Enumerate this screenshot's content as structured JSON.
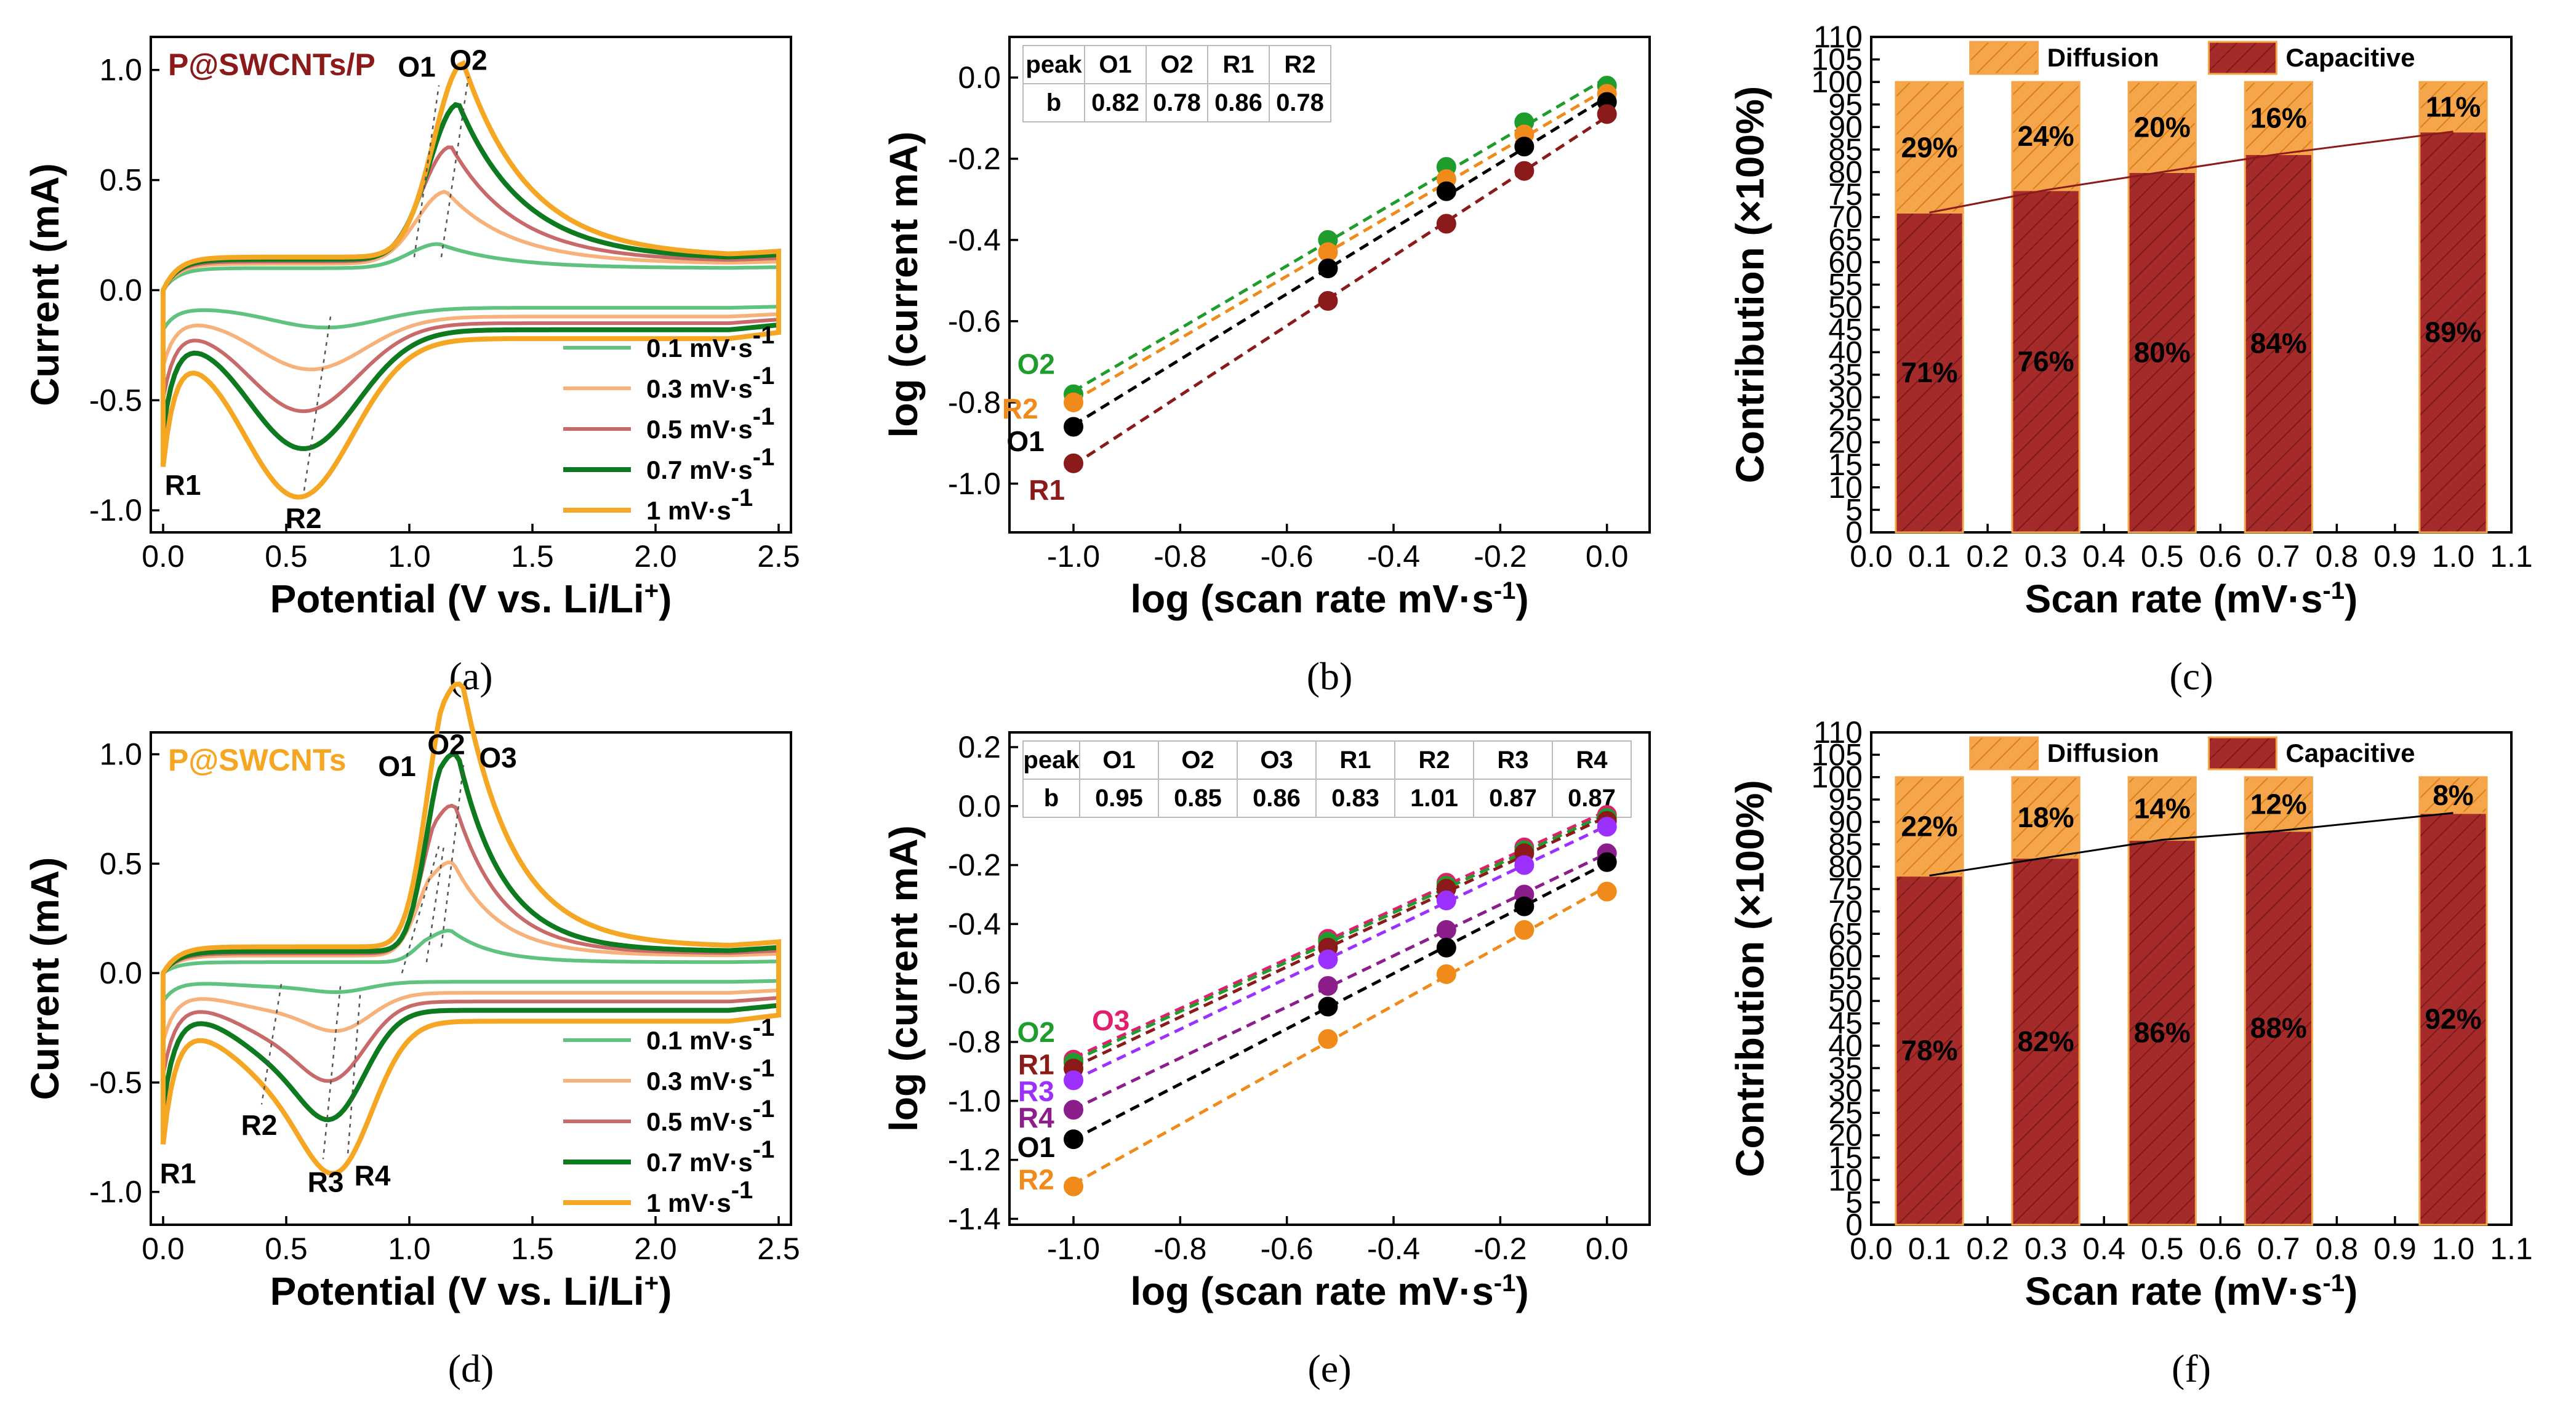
{
  "colors": {
    "c01": "#5fc27e",
    "c03": "#f7b27c",
    "c05": "#c96a6a",
    "c07": "#0d7a1f",
    "c1": "#f5a623",
    "slopeO": "#1e9c2c",
    "slopeR": "#f08a1a",
    "black": "#000000",
    "darkred": "#8b1a1a",
    "purple": "#9b30ff",
    "pink": "#e0206f",
    "plum": "#8b1e8b",
    "diff": "#f5a54a",
    "capc": "#a52a2a"
  },
  "chart_data": [
    {
      "id": "a",
      "type": "line",
      "caption": "(a)",
      "title": "P@SWCNTs/P",
      "xlabel": "Potential (V vs. Li/Li",
      "xlabel_sup": "+",
      "xlabel_end": ")",
      "ylabel": "Current (mA)",
      "xlim": [
        -0.05,
        2.55
      ],
      "ylim": [
        -1.1,
        1.15
      ],
      "xticks": [
        "0.0",
        "0.5",
        "1.0",
        "1.5",
        "2.0",
        "2.5"
      ],
      "yticks": [
        "-1.0",
        "-0.5",
        "0.0",
        "0.5",
        "1.0"
      ],
      "legend": [
        "0.1 mV·s",
        "0.3 mV·s",
        "0.5 mV·s",
        "0.7 mV·s",
        "1 mV·s"
      ],
      "legend_sup": "-1",
      "series": [
        {
          "name": "0.1",
          "color": "c01",
          "k": 0.18,
          "ox": [
            [
              1.12,
              0.17,
              0.12
            ]
          ],
          "red": [
            [
              0.66,
              -0.17,
              0.22
            ]
          ],
          "base": [
            0.1,
            -0.08
          ]
        },
        {
          "name": "0.3",
          "color": "c03",
          "k": 0.4,
          "ox": [
            [
              1.15,
              0.4,
              0.12
            ]
          ],
          "red": [
            [
              0.6,
              -0.36,
              0.22
            ]
          ],
          "base": [
            0.12,
            -0.12
          ]
        },
        {
          "name": "0.5",
          "color": "c05",
          "k": 0.6,
          "ox": [
            [
              1.17,
              0.6,
              0.12
            ]
          ],
          "red": [
            [
              0.57,
              -0.55,
              0.22
            ]
          ],
          "base": [
            0.13,
            -0.15
          ]
        },
        {
          "name": "0.7",
          "color": "c07",
          "k": 0.8,
          "ox": [
            [
              1.2,
              0.79,
              0.12
            ]
          ],
          "red": [
            [
              0.57,
              -0.72,
              0.22
            ]
          ],
          "base": [
            0.14,
            -0.18
          ]
        },
        {
          "name": "1",
          "color": "c1",
          "k": 1.0,
          "ox": [
            [
              1.22,
              0.97,
              0.12
            ]
          ],
          "red": [
            [
              0.55,
              -0.94,
              0.22
            ]
          ],
          "base": [
            0.15,
            -0.22
          ]
        }
      ],
      "labels": [
        {
          "t": "O1",
          "x": 1.03,
          "y": 0.97
        },
        {
          "t": "O2",
          "x": 1.24,
          "y": 1.0
        },
        {
          "t": "R1",
          "x": 0.08,
          "y": -0.93
        },
        {
          "t": "R2",
          "x": 0.57,
          "y": -1.08
        }
      ]
    },
    {
      "id": "b",
      "type": "scatter",
      "caption": "(b)",
      "xlabel": "log (scan rate mV·s",
      "xlabel_sup": "-1",
      "xlabel_end": ")",
      "ylabel": "log (current mA)",
      "xlim": [
        -1.12,
        0.08
      ],
      "ylim": [
        -1.12,
        0.1
      ],
      "xticks": [
        "-1.0",
        "-0.8",
        "-0.6",
        "-0.4",
        "-0.2",
        "0.0"
      ],
      "yticks": [
        "-1.0",
        "-0.8",
        "-0.6",
        "-0.4",
        "-0.2",
        "0.0"
      ],
      "table": {
        "header": [
          "peak",
          "O1",
          "O2",
          "R1",
          "R2"
        ],
        "row": [
          "b",
          "0.82",
          "0.78",
          "0.86",
          "0.78"
        ]
      },
      "x": [
        -1.0,
        -0.523,
        -0.301,
        -0.155,
        0.0
      ],
      "series": [
        {
          "name": "O2",
          "color": "slopeO",
          "values": [
            -0.78,
            -0.4,
            -0.22,
            -0.11,
            -0.02
          ]
        },
        {
          "name": "R2",
          "color": "slopeR",
          "values": [
            -0.8,
            -0.43,
            -0.25,
            -0.14,
            -0.04
          ]
        },
        {
          "name": "O1",
          "color": "black",
          "values": [
            -0.86,
            -0.47,
            -0.28,
            -0.17,
            -0.06
          ]
        },
        {
          "name": "R1",
          "color": "darkred",
          "values": [
            -0.95,
            -0.55,
            -0.36,
            -0.23,
            -0.09
          ]
        }
      ],
      "labels": [
        {
          "t": "O2",
          "x": -1.07,
          "y": -0.73,
          "c": "slopeO"
        },
        {
          "t": "R2",
          "x": -1.1,
          "y": -0.84,
          "c": "slopeR"
        },
        {
          "t": "O1",
          "x": -1.09,
          "y": -0.92,
          "c": "black"
        },
        {
          "t": "R1",
          "x": -1.05,
          "y": -1.04,
          "c": "darkred"
        }
      ]
    },
    {
      "id": "c",
      "type": "bar",
      "caption": "(c)",
      "xlabel": "Scan rate (mV·s",
      "xlabel_sup": "-1",
      "xlabel_end": ")",
      "ylabel": "Contribution (×100%)",
      "xlim": [
        0,
        1.1
      ],
      "ylim": [
        0,
        110
      ],
      "xticks": [
        "0.0",
        "0.1",
        "0.2",
        "0.3",
        "0.4",
        "0.5",
        "0.6",
        "0.7",
        "0.8",
        "0.9",
        "1.0",
        "1.1"
      ],
      "yticks": [
        "0",
        "5",
        "10",
        "15",
        "20",
        "25",
        "30",
        "35",
        "40",
        "45",
        "50",
        "55",
        "60",
        "65",
        "70",
        "75",
        "80",
        "85",
        "90",
        "95",
        "100",
        "105",
        "110"
      ],
      "legend": [
        "Diffusion",
        "Capacitive"
      ],
      "x": [
        0.1,
        0.3,
        0.5,
        0.7,
        1.0
      ],
      "capacitive": [
        71,
        76,
        80,
        84,
        89
      ],
      "diffusion": [
        29,
        24,
        20,
        16,
        11
      ],
      "capacitive_labels": [
        "71%",
        "76%",
        "80%",
        "84%",
        "89%"
      ],
      "diffusion_labels": [
        "29%",
        "24%",
        "20%",
        "16%",
        "11%"
      ],
      "line_color": "darkred"
    },
    {
      "id": "d",
      "type": "line",
      "caption": "(d)",
      "title": "P@SWCNTs",
      "xlabel": "Potential (V vs. Li/Li",
      "xlabel_sup": "+",
      "xlabel_end": ")",
      "ylabel": "Current (mA)",
      "xlim": [
        -0.05,
        2.55
      ],
      "ylim": [
        -1.15,
        1.1
      ],
      "xticks": [
        "0.0",
        "0.5",
        "1.0",
        "1.5",
        "2.0",
        "2.5"
      ],
      "yticks": [
        "-1.0",
        "-0.5",
        "0.0",
        "0.5",
        "1.0"
      ],
      "legend": [
        "0.1 mV·s",
        "0.3 mV·s",
        "0.5 mV·s",
        "0.7 mV·s",
        "1 mV·s"
      ],
      "legend_sup": "-1",
      "series": [
        {
          "name": "0.1",
          "color": "c01",
          "k": 0.16,
          "ox": [
            [
              1.07,
              0.08,
              0.06
            ],
            [
              1.17,
              0.15,
              0.08
            ]
          ],
          "red": [
            [
              0.45,
              -0.06,
              0.18
            ],
            [
              0.72,
              -0.08,
              0.12
            ]
          ],
          "base": [
            0.05,
            -0.04
          ]
        },
        {
          "name": "0.3",
          "color": "c03",
          "k": 0.4,
          "ox": [
            [
              1.08,
              0.22,
              0.07
            ],
            [
              1.18,
              0.38,
              0.09
            ]
          ],
          "red": [
            [
              0.45,
              -0.16,
              0.18
            ],
            [
              0.72,
              -0.24,
              0.13
            ]
          ],
          "base": [
            0.08,
            -0.09
          ]
        },
        {
          "name": "0.5",
          "color": "c05",
          "k": 0.6,
          "ox": [
            [
              1.1,
              0.34,
              0.07
            ],
            [
              1.19,
              0.56,
              0.09
            ]
          ],
          "red": [
            [
              0.47,
              -0.28,
              0.18
            ],
            [
              0.7,
              -0.42,
              0.13
            ]
          ],
          "base": [
            0.09,
            -0.13
          ]
        },
        {
          "name": "0.7",
          "color": "c07",
          "k": 0.8,
          "ox": [
            [
              1.12,
              0.44,
              0.07
            ],
            [
              1.2,
              0.72,
              0.09
            ]
          ],
          "red": [
            [
              0.48,
              -0.38,
              0.18
            ],
            [
              0.7,
              -0.56,
              0.13
            ]
          ],
          "base": [
            0.1,
            -0.17
          ]
        },
        {
          "name": "1",
          "color": "c1",
          "k": 1.0,
          "ox": [
            [
              1.13,
              0.58,
              0.08
            ],
            [
              1.22,
              0.95,
              0.1
            ]
          ],
          "red": [
            [
              0.5,
              -0.5,
              0.2
            ],
            [
              0.72,
              -0.75,
              0.14
            ]
          ],
          "base": [
            0.12,
            -0.22
          ]
        }
      ],
      "labels": [
        {
          "t": "O1",
          "x": 0.95,
          "y": 0.9
        },
        {
          "t": "O2",
          "x": 1.15,
          "y": 1.0
        },
        {
          "t": "O3",
          "x": 1.36,
          "y": 0.94
        },
        {
          "t": "R1",
          "x": 0.06,
          "y": -0.96
        },
        {
          "t": "R2",
          "x": 0.39,
          "y": -0.74
        },
        {
          "t": "R3",
          "x": 0.66,
          "y": -1.0
        },
        {
          "t": "R4",
          "x": 0.85,
          "y": -0.97
        }
      ]
    },
    {
      "id": "e",
      "type": "scatter",
      "caption": "(e)",
      "xlabel": "log (scan rate mV·s",
      "xlabel_sup": "-1",
      "xlabel_end": ")",
      "ylabel": "log (current mA)",
      "xlim": [
        -1.12,
        0.08
      ],
      "ylim": [
        -1.42,
        0.25
      ],
      "xticks": [
        "-1.0",
        "-0.8",
        "-0.6",
        "-0.4",
        "-0.2",
        "0.0"
      ],
      "yticks": [
        "-1.4",
        "-1.2",
        "-1.0",
        "-0.8",
        "-0.6",
        "-0.4",
        "-0.2",
        "0.0",
        "0.2"
      ],
      "table": {
        "header": [
          "peak",
          "O1",
          "O2",
          "O3",
          "R1",
          "R2",
          "R3",
          "R4"
        ],
        "row": [
          "b",
          "0.95",
          "0.85",
          "0.86",
          "0.83",
          "1.01",
          "0.87",
          "0.87"
        ]
      },
      "x": [
        -1.0,
        -0.523,
        -0.301,
        -0.155,
        0.0
      ],
      "series": [
        {
          "name": "O3",
          "color": "pink",
          "values": [
            -0.86,
            -0.45,
            -0.26,
            -0.14,
            -0.03
          ]
        },
        {
          "name": "O2",
          "color": "slopeO",
          "values": [
            -0.87,
            -0.46,
            -0.27,
            -0.15,
            -0.04
          ]
        },
        {
          "name": "R1",
          "color": "darkred",
          "values": [
            -0.89,
            -0.48,
            -0.28,
            -0.16,
            -0.05
          ]
        },
        {
          "name": "R3",
          "color": "purple",
          "values": [
            -0.93,
            -0.52,
            -0.32,
            -0.2,
            -0.07
          ]
        },
        {
          "name": "R4",
          "color": "plum",
          "values": [
            -1.03,
            -0.61,
            -0.42,
            -0.3,
            -0.16
          ]
        },
        {
          "name": "O1",
          "color": "black",
          "values": [
            -1.13,
            -0.68,
            -0.48,
            -0.34,
            -0.19
          ]
        },
        {
          "name": "R2",
          "color": "slopeR",
          "values": [
            -1.29,
            -0.79,
            -0.57,
            -0.42,
            -0.29
          ]
        }
      ],
      "labels": [
        {
          "t": "O3",
          "x": -0.93,
          "y": -0.76,
          "c": "pink"
        },
        {
          "t": "O2",
          "x": -1.07,
          "y": -0.8,
          "c": "slopeO"
        },
        {
          "t": "R1",
          "x": -1.07,
          "y": -0.91,
          "c": "darkred"
        },
        {
          "t": "R3",
          "x": -1.07,
          "y": -1.0,
          "c": "purple"
        },
        {
          "t": "R4",
          "x": -1.07,
          "y": -1.09,
          "c": "plum"
        },
        {
          "t": "O1",
          "x": -1.07,
          "y": -1.19,
          "c": "black"
        },
        {
          "t": "R2",
          "x": -1.07,
          "y": -1.3,
          "c": "slopeR"
        }
      ]
    },
    {
      "id": "f",
      "type": "bar",
      "caption": "(f)",
      "xlabel": "Scan rate (mV·s",
      "xlabel_sup": "-1",
      "xlabel_end": ")",
      "ylabel": "Contribution (×100%)",
      "xlim": [
        0,
        1.1
      ],
      "ylim": [
        0,
        110
      ],
      "xticks": [
        "0.0",
        "0.1",
        "0.2",
        "0.3",
        "0.4",
        "0.5",
        "0.6",
        "0.7",
        "0.8",
        "0.9",
        "1.0",
        "1.1"
      ],
      "yticks": [
        "0",
        "5",
        "10",
        "15",
        "20",
        "25",
        "30",
        "35",
        "40",
        "45",
        "50",
        "55",
        "60",
        "65",
        "70",
        "75",
        "80",
        "85",
        "90",
        "95",
        "100",
        "105",
        "110"
      ],
      "legend": [
        "Diffusion",
        "Capacitive"
      ],
      "x": [
        0.1,
        0.3,
        0.5,
        0.7,
        1.0
      ],
      "capacitive": [
        78,
        82,
        86,
        88,
        92
      ],
      "diffusion": [
        22,
        18,
        14,
        12,
        8
      ],
      "capacitive_labels": [
        "78%",
        "82%",
        "86%",
        "88%",
        "92%"
      ],
      "diffusion_labels": [
        "22%",
        "18%",
        "14%",
        "12%",
        "8%"
      ],
      "line_color": "black"
    }
  ]
}
